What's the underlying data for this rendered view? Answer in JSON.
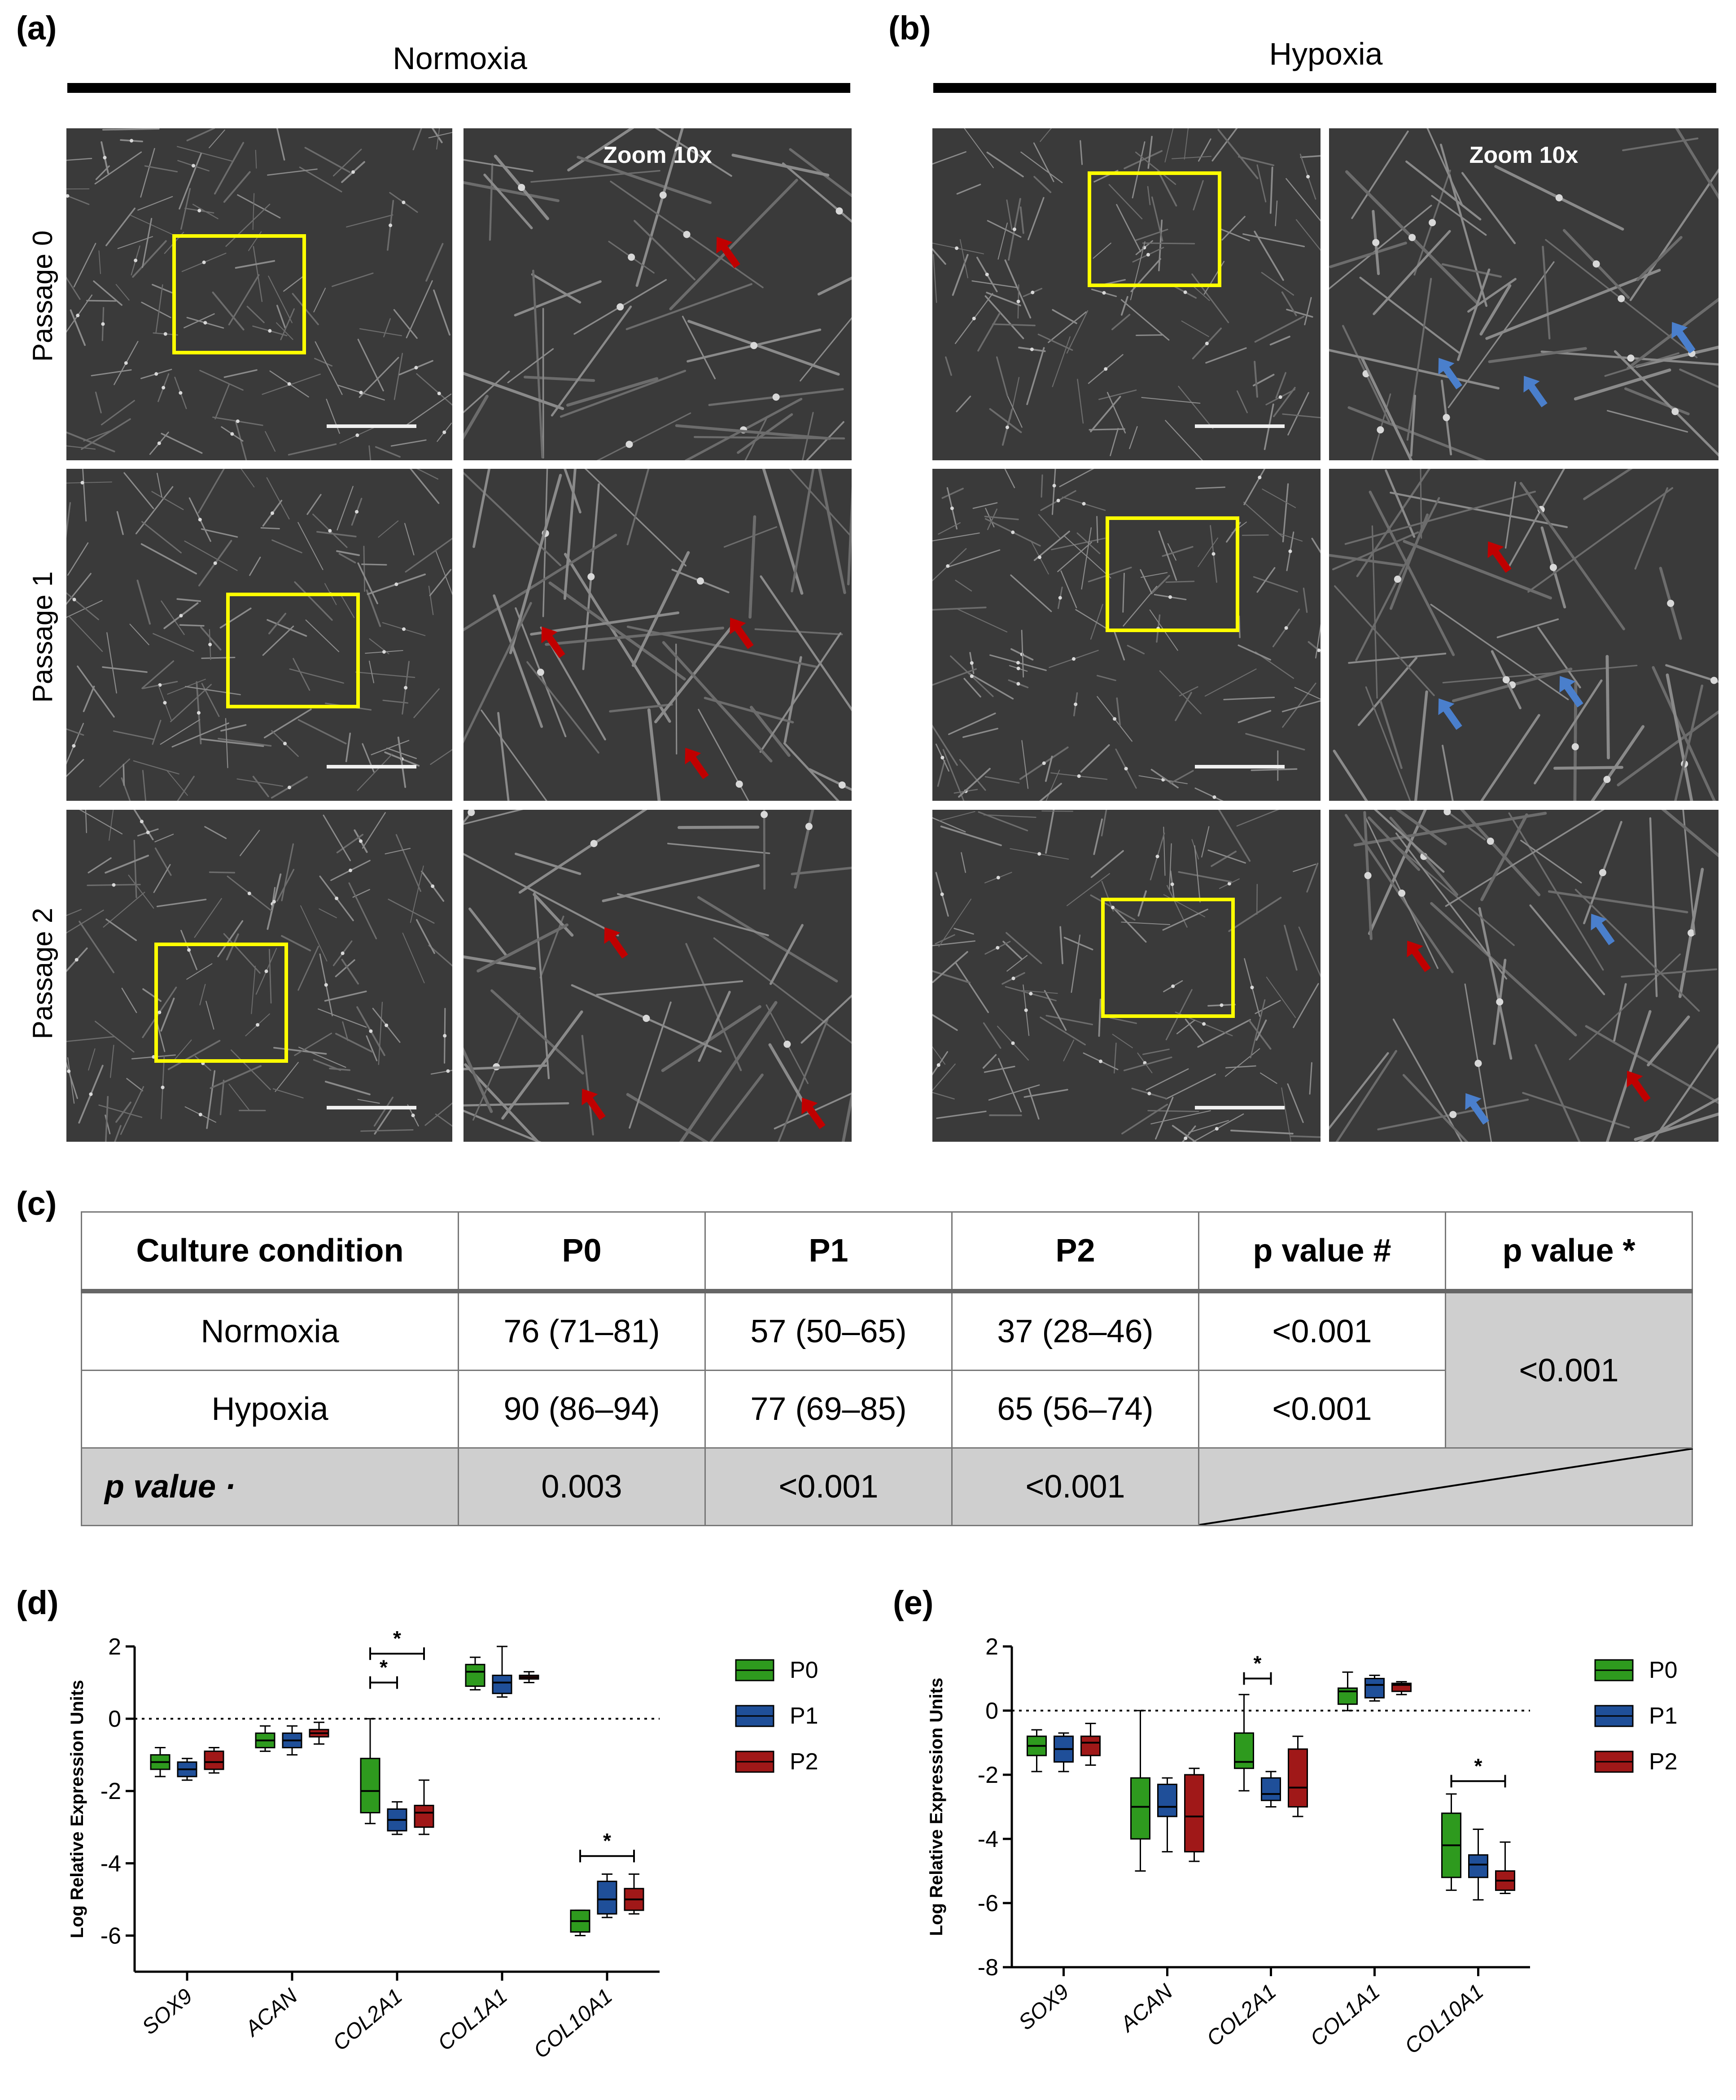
{
  "panels": {
    "a": {
      "label": "(a)",
      "condition": "Normoxia"
    },
    "b": {
      "label": "(b)",
      "condition": "Hypoxia"
    },
    "c": {
      "label": "(c)"
    },
    "d": {
      "label": "(d)"
    },
    "e": {
      "label": "(e)"
    }
  },
  "micrographs": {
    "rows": [
      "Passage 0",
      "Passage 1",
      "Passage 2"
    ],
    "zoom_label": "Zoom 10x",
    "colors": {
      "background": "#3a3a3a",
      "roi": "#ffff00",
      "red_arrow": "#c00000",
      "blue_arrow": "#4a7fcc"
    }
  },
  "table": {
    "headers": [
      "Culture condition",
      "P0",
      "P1",
      "P2",
      "p value #",
      "p value *"
    ],
    "rows": [
      {
        "condition": "Normoxia",
        "p0": "76 (71–81)",
        "p1": "57 (50–65)",
        "p2": "37 (28–46)",
        "p": "<0.001"
      },
      {
        "condition": "Hypoxia",
        "p0": "90 (86–94)",
        "p1": "77 (69–85)",
        "p2": "65 (56–74)",
        "p": "<0.001"
      }
    ],
    "pvalue_star": "<0.001",
    "pvalue_row": {
      "label": "p value ·",
      "p0": "0.003",
      "p1": "<0.001",
      "p2": "<0.001"
    }
  },
  "chart_data": [
    {
      "type": "box",
      "panel": "(d)",
      "ylabel": "Log Relative Expression Units",
      "ylim": [
        -7,
        2
      ],
      "yticks": [
        2,
        0,
        -2,
        -4,
        -6
      ],
      "categories": [
        "SOX9",
        "ACAN",
        "COL2A1",
        "COL1A1",
        "COL10A1"
      ],
      "series_names": [
        "P0",
        "P1",
        "P2"
      ],
      "colors": [
        "#2e9a1e",
        "#1f4f99",
        "#a01818"
      ],
      "boxes": [
        [
          [
            -1.6,
            -1.4,
            -1.2,
            -1.0,
            -0.8
          ],
          [
            -1.7,
            -1.6,
            -1.4,
            -1.2,
            -1.1
          ],
          [
            -1.5,
            -1.4,
            -1.2,
            -0.9,
            -0.8
          ]
        ],
        [
          [
            -0.9,
            -0.8,
            -0.6,
            -0.4,
            -0.2
          ],
          [
            -1.0,
            -0.8,
            -0.6,
            -0.4,
            -0.2
          ],
          [
            -0.7,
            -0.5,
            -0.4,
            -0.3,
            -0.1
          ]
        ],
        [
          [
            -2.9,
            -2.6,
            -2.0,
            -1.1,
            0.0
          ],
          [
            -3.2,
            -3.1,
            -2.8,
            -2.5,
            -2.3
          ],
          [
            -3.2,
            -3.0,
            -2.6,
            -2.4,
            -1.7
          ]
        ],
        [
          [
            0.8,
            0.9,
            1.3,
            1.5,
            1.7
          ],
          [
            0.6,
            0.7,
            1.0,
            1.2,
            2.0
          ],
          [
            1.0,
            1.1,
            1.15,
            1.2,
            1.3
          ]
        ],
        [
          [
            -6.0,
            -5.9,
            -5.6,
            -5.3,
            -5.3
          ],
          [
            -5.5,
            -5.4,
            -5.0,
            -4.5,
            -4.3
          ],
          [
            -5.4,
            -5.3,
            -5.0,
            -4.7,
            -4.3
          ]
        ]
      ],
      "significance": [
        {
          "category": "COL2A1",
          "from": "P0",
          "to": "P1",
          "label": "*",
          "y": 1.0
        },
        {
          "category": "COL2A1",
          "from": "P0",
          "to": "P2",
          "label": "*",
          "y": 1.8
        },
        {
          "category": "COL10A1",
          "from": "P0",
          "to": "P2",
          "label": "*",
          "y": -3.8
        }
      ]
    },
    {
      "type": "box",
      "panel": "(e)",
      "ylabel": "Log Relative Expression Units",
      "ylim": [
        -8,
        2
      ],
      "yticks": [
        2,
        0,
        -2,
        -4,
        -6,
        -8
      ],
      "categories": [
        "SOX9",
        "ACAN",
        "COL2A1",
        "COL1A1",
        "COL10A1"
      ],
      "series_names": [
        "P0",
        "P1",
        "P2"
      ],
      "colors": [
        "#2e9a1e",
        "#1f4f99",
        "#a01818"
      ],
      "boxes": [
        [
          [
            -1.9,
            -1.4,
            -1.1,
            -0.8,
            -0.6
          ],
          [
            -1.9,
            -1.6,
            -1.2,
            -0.8,
            -0.7
          ],
          [
            -1.7,
            -1.4,
            -1.0,
            -0.8,
            -0.4
          ]
        ],
        [
          [
            -5.0,
            -4.0,
            -3.0,
            -2.1,
            0.0
          ],
          [
            -4.4,
            -3.3,
            -3.0,
            -2.3,
            -2.1
          ],
          [
            -4.7,
            -4.4,
            -3.3,
            -2.0,
            -1.8
          ]
        ],
        [
          [
            -2.5,
            -1.8,
            -1.6,
            -0.7,
            0.5
          ],
          [
            -3.0,
            -2.8,
            -2.6,
            -2.1,
            -1.9
          ],
          [
            -3.3,
            -3.0,
            -2.4,
            -1.2,
            -0.8
          ]
        ],
        [
          [
            0.0,
            0.2,
            0.6,
            0.7,
            1.2
          ],
          [
            0.3,
            0.4,
            0.8,
            1.0,
            1.1
          ],
          [
            0.5,
            0.6,
            0.8,
            0.85,
            0.9
          ]
        ],
        [
          [
            -5.6,
            -5.2,
            -4.2,
            -3.2,
            -2.6
          ],
          [
            -5.9,
            -5.2,
            -4.8,
            -4.5,
            -3.7
          ],
          [
            -5.7,
            -5.6,
            -5.3,
            -5.0,
            -4.1
          ]
        ]
      ],
      "significance": [
        {
          "category": "COL2A1",
          "from": "P0",
          "to": "P1",
          "label": "*",
          "y": 1.0
        },
        {
          "category": "COL10A1",
          "from": "P0",
          "to": "P2",
          "label": "*",
          "y": -2.2
        }
      ]
    }
  ]
}
